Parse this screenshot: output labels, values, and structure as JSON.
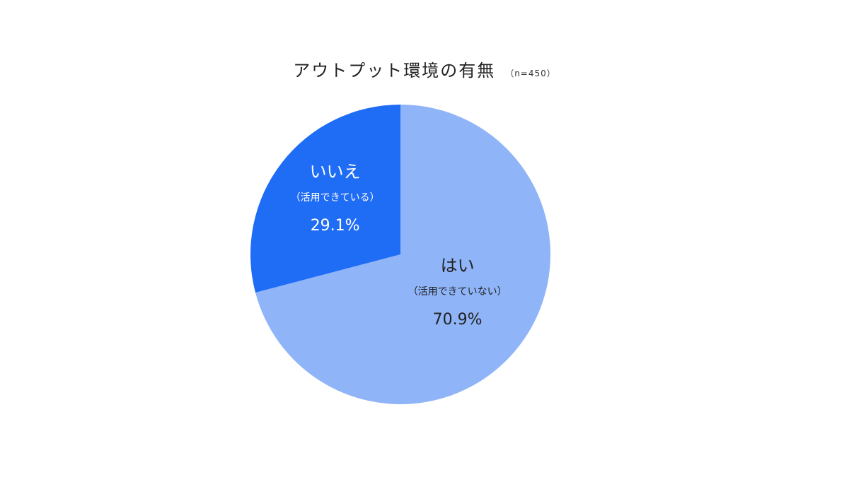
{
  "chart_data": {
    "type": "pie",
    "title": "アウトプット環境の有無",
    "subtitle": "（n=450）",
    "slices": [
      {
        "label": "はい",
        "sublabel": "（活用できていない）",
        "value": 70.9,
        "value_label": "70.9%",
        "color": "#8fb4f8",
        "text_color": "#222222"
      },
      {
        "label": "いいえ",
        "sublabel": "（活用できている）",
        "value": 29.1,
        "value_label": "29.1%",
        "color": "#1f6cf5",
        "text_color": "#ffffff"
      }
    ],
    "start_angle": "12 o'clock",
    "direction": "clockwise",
    "legend": "none"
  }
}
